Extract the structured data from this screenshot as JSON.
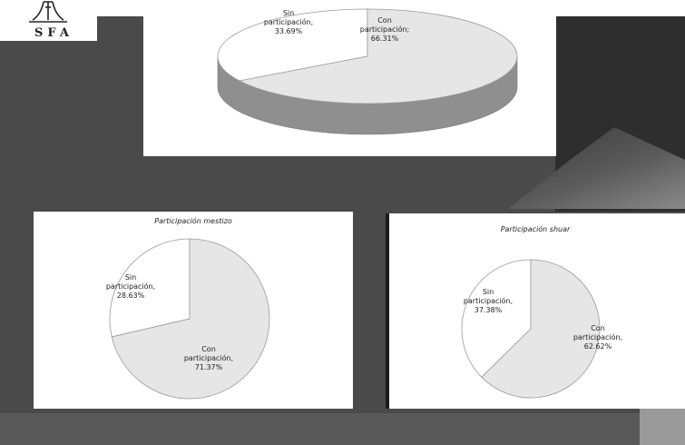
{
  "logo": {
    "text": "SFA"
  },
  "header": {
    "text": "..."
  },
  "chart_data": [
    {
      "type": "pie",
      "title": "",
      "style": "3d",
      "categories": [
        "Sin participación",
        "Con participación"
      ],
      "values": [
        33.69,
        66.31
      ],
      "labels": [
        [
          "Sin",
          "participación,",
          "33.69%"
        ],
        [
          "Con",
          "participación;",
          "66.31%"
        ]
      ],
      "colors": {
        "Sin participación": "#ffffff",
        "Con participación": "#e6e6e6",
        "side": "#8f8f8f"
      }
    },
    {
      "type": "pie",
      "title": "Participación mestizo",
      "categories": [
        "Sin participación",
        "Con participación"
      ],
      "values": [
        28.63,
        71.37
      ],
      "labels": [
        [
          "Sin",
          "participación,",
          "28.63%"
        ],
        [
          "Con",
          "participación,",
          "71.37%"
        ]
      ],
      "colors": {
        "Sin participación": "#ffffff",
        "Con participación": "#e6e6e6"
      }
    },
    {
      "type": "pie",
      "title": "Participación shuar",
      "categories": [
        "Sin participación",
        "Con participación"
      ],
      "values": [
        37.38,
        62.62
      ],
      "labels": [
        [
          "Sin",
          "participación,",
          "37.38%"
        ],
        [
          "Con",
          "participación,",
          "62.62%"
        ]
      ],
      "colors": {
        "Sin participación": "#ffffff",
        "Con participación": "#e6e6e6"
      }
    }
  ]
}
